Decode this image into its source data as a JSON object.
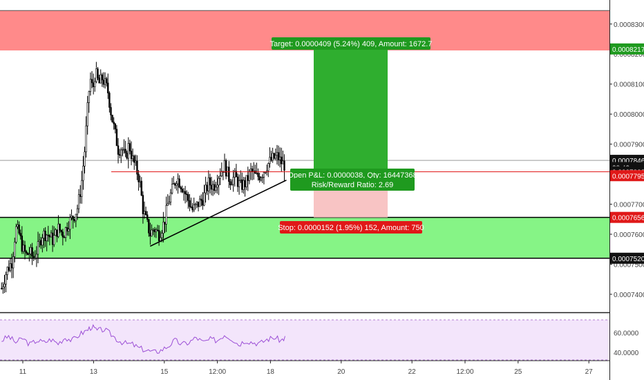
{
  "chart_data": {
    "type": "candlestick",
    "colors": {
      "red_zone": "#ff8a8a",
      "green_zone": "#86f486",
      "target_box": "#2fae2f",
      "stop_box": "#f8c4c4",
      "rsi_panel": "#f3e5fb",
      "rsi_line": "#9c4fd6",
      "candles": "#000000",
      "entry_line": "#e01010"
    },
    "y_ticks": [
      {
        "label": "0.0008300",
        "value": 0.00083
      },
      {
        "label": "0.0008200",
        "value": 0.00082
      },
      {
        "label": "0.0008100",
        "value": 0.00081
      },
      {
        "label": "0.0008000",
        "value": 0.0008
      },
      {
        "label": "0.0007900",
        "value": 0.00079
      },
      {
        "label": "0.0007800",
        "value": 0.00078
      },
      {
        "label": "0.0007700",
        "value": 0.00077
      },
      {
        "label": "0.0007600",
        "value": 0.00076
      },
      {
        "label": "0.0007500",
        "value": 0.00075
      },
      {
        "label": "0.0007400",
        "value": 0.00074
      }
    ],
    "ylim": [
      0.000734,
      0.000838
    ],
    "price_badges": [
      {
        "label": "0.0008217",
        "value": 0.0008217,
        "style": "green"
      },
      {
        "label": "0.0007846",
        "value": 0.0007846,
        "style": "dark"
      },
      {
        "label": "38:43",
        "value": 0.0007822,
        "style": "dark"
      },
      {
        "label": "0.0007808",
        "value": 0.0007808,
        "style": "dark"
      },
      {
        "label": "0.0007795",
        "value": 0.0007795,
        "style": "red"
      },
      {
        "label": "0.0007656",
        "value": 0.0007656,
        "style": "red"
      },
      {
        "label": "0.0007520",
        "value": 0.000752,
        "style": "dark"
      }
    ],
    "zones": {
      "resistance": [
        0.0008212,
        0.0008345
      ],
      "support": [
        0.000752,
        0.0007656
      ]
    },
    "horizontal_lines": [
      {
        "name": "upper-level-line",
        "value": 0.0007846
      },
      {
        "name": "support-bottom-line",
        "value": 0.000752
      },
      {
        "name": "support-top-line",
        "value": 0.0007656
      }
    ],
    "position": {
      "entry": 0.0007808,
      "target": 0.0008217,
      "stop": 0.0007656,
      "target_label": "Target: 0.0000409 (5.24%) 409, Amount: 1672.7",
      "pnl_label": "Open P&L: 0.0000038, Qty: 16447368",
      "ratio_label": "Risk/Reward Ratio: 2.69",
      "stop_label": "Stop: 0.0000152 (1.95%) 152, Amount: 750"
    },
    "x_ticks": [
      {
        "label": "11",
        "day": 11.0
      },
      {
        "label": "13",
        "day": 13.0
      },
      {
        "label": "15",
        "day": 15.0
      },
      {
        "label": "12:00",
        "day": 16.5
      },
      {
        "label": "18",
        "day": 18.0
      },
      {
        "label": "20",
        "day": 20.0
      },
      {
        "label": "22",
        "day": 22.0
      },
      {
        "label": "12:00",
        "day": 23.5
      },
      {
        "label": "25",
        "day": 25.0
      },
      {
        "label": "27",
        "day": 27.0
      }
    ],
    "rsi_ticks": [
      {
        "label": "60.0000",
        "value": 60
      },
      {
        "label": "40.0000",
        "value": 40
      }
    ],
    "trendline": {
      "start": {
        "day": 14.6,
        "price": 0.000756
      },
      "end": {
        "day": 18.45,
        "price": 0.000778
      }
    },
    "price_path": [
      [
        10.4,
        0.000742
      ],
      [
        10.55,
        0.000748
      ],
      [
        10.7,
        0.000751
      ],
      [
        10.8,
        0.000762
      ],
      [
        10.9,
        0.00076
      ],
      [
        11.0,
        0.000755
      ],
      [
        11.1,
        0.000753
      ],
      [
        11.2,
        0.000754
      ],
      [
        11.3,
        0.000752
      ],
      [
        11.45,
        0.000756
      ],
      [
        11.55,
        0.00076
      ],
      [
        11.7,
        0.00076
      ],
      [
        11.85,
        0.000758
      ],
      [
        12.0,
        0.000762
      ],
      [
        12.15,
        0.00076
      ],
      [
        12.3,
        0.000764
      ],
      [
        12.45,
        0.000766
      ],
      [
        12.55,
        0.000769
      ],
      [
        12.65,
        0.000776
      ],
      [
        12.75,
        0.000788
      ],
      [
        12.82,
        0.0008
      ],
      [
        12.9,
        0.000812
      ],
      [
        12.98,
        0.000808
      ],
      [
        13.05,
        0.000814
      ],
      [
        13.15,
        0.00081
      ],
      [
        13.25,
        0.000812
      ],
      [
        13.4,
        0.000808
      ],
      [
        13.5,
        0.0008
      ],
      [
        13.6,
        0.000794
      ],
      [
        13.7,
        0.000788
      ],
      [
        13.8,
        0.000789
      ],
      [
        13.9,
        0.000785
      ],
      [
        14.0,
        0.00079
      ],
      [
        14.1,
        0.000785
      ],
      [
        14.2,
        0.000782
      ],
      [
        14.3,
        0.000778
      ],
      [
        14.4,
        0.000768
      ],
      [
        14.5,
        0.000764
      ],
      [
        14.6,
        0.00076
      ],
      [
        14.7,
        0.000762
      ],
      [
        14.85,
        0.00076
      ],
      [
        15.0,
        0.000764
      ],
      [
        15.1,
        0.00077
      ],
      [
        15.2,
        0.000774
      ],
      [
        15.35,
        0.000779
      ],
      [
        15.5,
        0.000776
      ],
      [
        15.65,
        0.000772
      ],
      [
        15.8,
        0.000768
      ],
      [
        15.95,
        0.00077
      ],
      [
        16.1,
        0.000772
      ],
      [
        16.25,
        0.000777
      ],
      [
        16.4,
        0.000776
      ],
      [
        16.55,
        0.00078
      ],
      [
        16.7,
        0.000783
      ],
      [
        16.85,
        0.000778
      ],
      [
        17.0,
        0.000779
      ],
      [
        17.15,
        0.000776
      ],
      [
        17.3,
        0.000777
      ],
      [
        17.45,
        0.000781
      ],
      [
        17.6,
        0.000779
      ],
      [
        17.75,
        0.00078
      ],
      [
        17.9,
        0.000783
      ],
      [
        18.05,
        0.000785
      ],
      [
        18.2,
        0.000786
      ],
      [
        18.3,
        0.000784
      ],
      [
        18.4,
        0.000783
      ]
    ],
    "rsi_path": [
      [
        10.4,
        52
      ],
      [
        10.6,
        56
      ],
      [
        10.8,
        50
      ],
      [
        11.0,
        54
      ],
      [
        11.2,
        48
      ],
      [
        11.4,
        52
      ],
      [
        11.6,
        50
      ],
      [
        11.8,
        53
      ],
      [
        12.0,
        49
      ],
      [
        12.2,
        55
      ],
      [
        12.4,
        52
      ],
      [
        12.6,
        58
      ],
      [
        12.8,
        62
      ],
      [
        12.95,
        66
      ],
      [
        13.1,
        62
      ],
      [
        13.3,
        63
      ],
      [
        13.5,
        58
      ],
      [
        13.7,
        52
      ],
      [
        13.9,
        49
      ],
      [
        14.1,
        48
      ],
      [
        14.3,
        44
      ],
      [
        14.5,
        42
      ],
      [
        14.7,
        40
      ],
      [
        14.9,
        42
      ],
      [
        15.1,
        46
      ],
      [
        15.3,
        52
      ],
      [
        15.5,
        48
      ],
      [
        15.7,
        50
      ],
      [
        15.9,
        55
      ],
      [
        16.1,
        50
      ],
      [
        16.3,
        53
      ],
      [
        16.5,
        52
      ],
      [
        16.7,
        58
      ],
      [
        16.9,
        54
      ],
      [
        17.1,
        48
      ],
      [
        17.3,
        52
      ],
      [
        17.5,
        50
      ],
      [
        17.7,
        49
      ],
      [
        17.9,
        53
      ],
      [
        18.1,
        55
      ],
      [
        18.3,
        52
      ],
      [
        18.45,
        56
      ]
    ]
  }
}
